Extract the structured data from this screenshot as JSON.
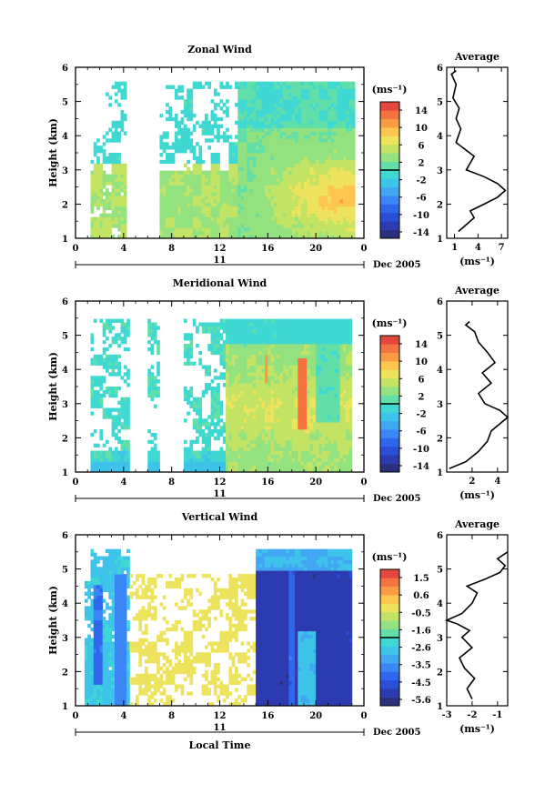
{
  "figure": {
    "x_label": "Local Time",
    "date_label": "Dec 2005",
    "day_label": "11",
    "y_label": "Height (km)",
    "avg_title": "Average",
    "avg_unit": "(ms⁻¹)",
    "cbar_unit": "(ms⁻¹)"
  },
  "chart_data": [
    {
      "type": "heatmap",
      "title": "Zonal Wind",
      "xlabel": "",
      "ylabel": "Height (km)",
      "x_ticks": [
        "0",
        "4",
        "8",
        "12",
        "16",
        "20",
        "0"
      ],
      "x_range": [
        0,
        24
      ],
      "y_ticks": [
        "1",
        "2",
        "3",
        "4",
        "5",
        "6"
      ],
      "y_range": [
        1,
        6
      ],
      "colorbar": {
        "unit": "(ms⁻¹)",
        "ticks": [
          "14",
          "10",
          "6",
          "2",
          "-2",
          "-6",
          "-10",
          "-14"
        ],
        "range": [
          -14,
          14
        ]
      },
      "description_values": {
        "valid_time_ranges": [
          [
            1.2,
            3.0
          ],
          [
            3.0,
            4.3
          ],
          [
            7.0,
            13.0
          ],
          [
            13.0,
            23.0
          ]
        ],
        "top_height": 5.5
      }
    },
    {
      "type": "line",
      "title": "Average",
      "xlabel": "(ms⁻¹)",
      "x_ticks": [
        "1",
        "4",
        "7"
      ],
      "x_range": [
        0,
        7.8
      ],
      "y_range": [
        1,
        6
      ],
      "series": [
        {
          "x": [
            1.5,
            2.5,
            3.5,
            3.0,
            4.8,
            6.5,
            7.5,
            6.5,
            4.8,
            2.5,
            3.5,
            1.2,
            1.8,
            1.2,
            1.6,
            0.8,
            1.2,
            0.6,
            1.2
          ],
          "y": [
            1.2,
            1.4,
            1.6,
            1.8,
            2.0,
            2.2,
            2.4,
            2.6,
            2.8,
            3.0,
            3.4,
            3.8,
            4.2,
            4.5,
            4.8,
            5.1,
            5.5,
            5.8,
            5.9
          ]
        }
      ]
    },
    {
      "type": "heatmap",
      "title": "Meridional Wind",
      "xlabel": "",
      "ylabel": "Height (km)",
      "x_ticks": [
        "0",
        "4",
        "8",
        "12",
        "16",
        "20",
        "0"
      ],
      "x_range": [
        0,
        24
      ],
      "y_ticks": [
        "1",
        "2",
        "3",
        "4",
        "5",
        "6"
      ],
      "y_range": [
        1,
        6
      ],
      "colorbar": {
        "unit": "(ms⁻¹)",
        "ticks": [
          "14",
          "10",
          "6",
          "2",
          "-2",
          "-6",
          "-10",
          "-14"
        ],
        "range": [
          -14,
          14
        ]
      },
      "description_values": {
        "valid_time_ranges": [
          [
            1.2,
            4.6
          ],
          [
            6.0,
            7.0
          ],
          [
            9.0,
            23.0
          ]
        ],
        "top_height": 5.5
      }
    },
    {
      "type": "line",
      "title": "Average",
      "xlabel": "(ms⁻¹)",
      "x_ticks": [
        "2",
        "4"
      ],
      "x_range": [
        0,
        4.8
      ],
      "y_range": [
        1,
        6
      ],
      "series": [
        {
          "x": [
            0.2,
            1.5,
            2.5,
            3.2,
            3.5,
            4.8,
            4.2,
            3.0,
            2.5,
            3.5,
            2.8,
            3.8,
            3.2,
            2.5,
            2.2,
            1.5,
            1.8
          ],
          "y": [
            1.1,
            1.3,
            1.6,
            1.9,
            2.2,
            2.6,
            2.8,
            3.0,
            3.3,
            3.6,
            3.9,
            4.2,
            4.5,
            4.8,
            5.1,
            5.3,
            5.4
          ]
        }
      ]
    },
    {
      "type": "heatmap",
      "title": "Vertical Wind",
      "xlabel": "Local Time",
      "ylabel": "Height (km)",
      "x_ticks": [
        "0",
        "4",
        "8",
        "12",
        "16",
        "20",
        "0"
      ],
      "x_range": [
        0,
        24
      ],
      "y_ticks": [
        "1",
        "2",
        "3",
        "4",
        "5",
        "6"
      ],
      "y_range": [
        1,
        6
      ],
      "colorbar": {
        "unit": "(ms⁻¹)",
        "ticks": [
          "1.5",
          "0.6",
          "-0.5",
          "-1.6",
          "-2.6",
          "-3.5",
          "-4.5",
          "-5.6"
        ],
        "range": [
          -6,
          2
        ]
      },
      "description_values": {
        "valid_time_ranges": [
          [
            1.0,
            4.4
          ],
          [
            4.4,
            15.0
          ],
          [
            15.0,
            23.0
          ]
        ],
        "top_height": 5.5
      }
    },
    {
      "type": "line",
      "title": "Average",
      "xlabel": "(ms⁻¹)",
      "x_ticks": [
        "-3",
        "-2",
        "-1"
      ],
      "x_range": [
        -3,
        -0.6
      ],
      "y_range": [
        1,
        6
      ],
      "series": [
        {
          "x": [
            -2.0,
            -2.2,
            -1.9,
            -2.3,
            -2.5,
            -2.0,
            -2.4,
            -2.1,
            -2.6,
            -3.0,
            -2.4,
            -2.0,
            -1.8,
            -2.2,
            -1.5,
            -0.9,
            -0.7,
            -1.0,
            -0.6
          ],
          "y": [
            1.2,
            1.5,
            1.8,
            2.1,
            2.4,
            2.7,
            3.0,
            3.2,
            3.4,
            3.5,
            3.7,
            4.0,
            4.3,
            4.5,
            4.7,
            4.9,
            5.1,
            5.3,
            5.5
          ]
        }
      ]
    }
  ]
}
